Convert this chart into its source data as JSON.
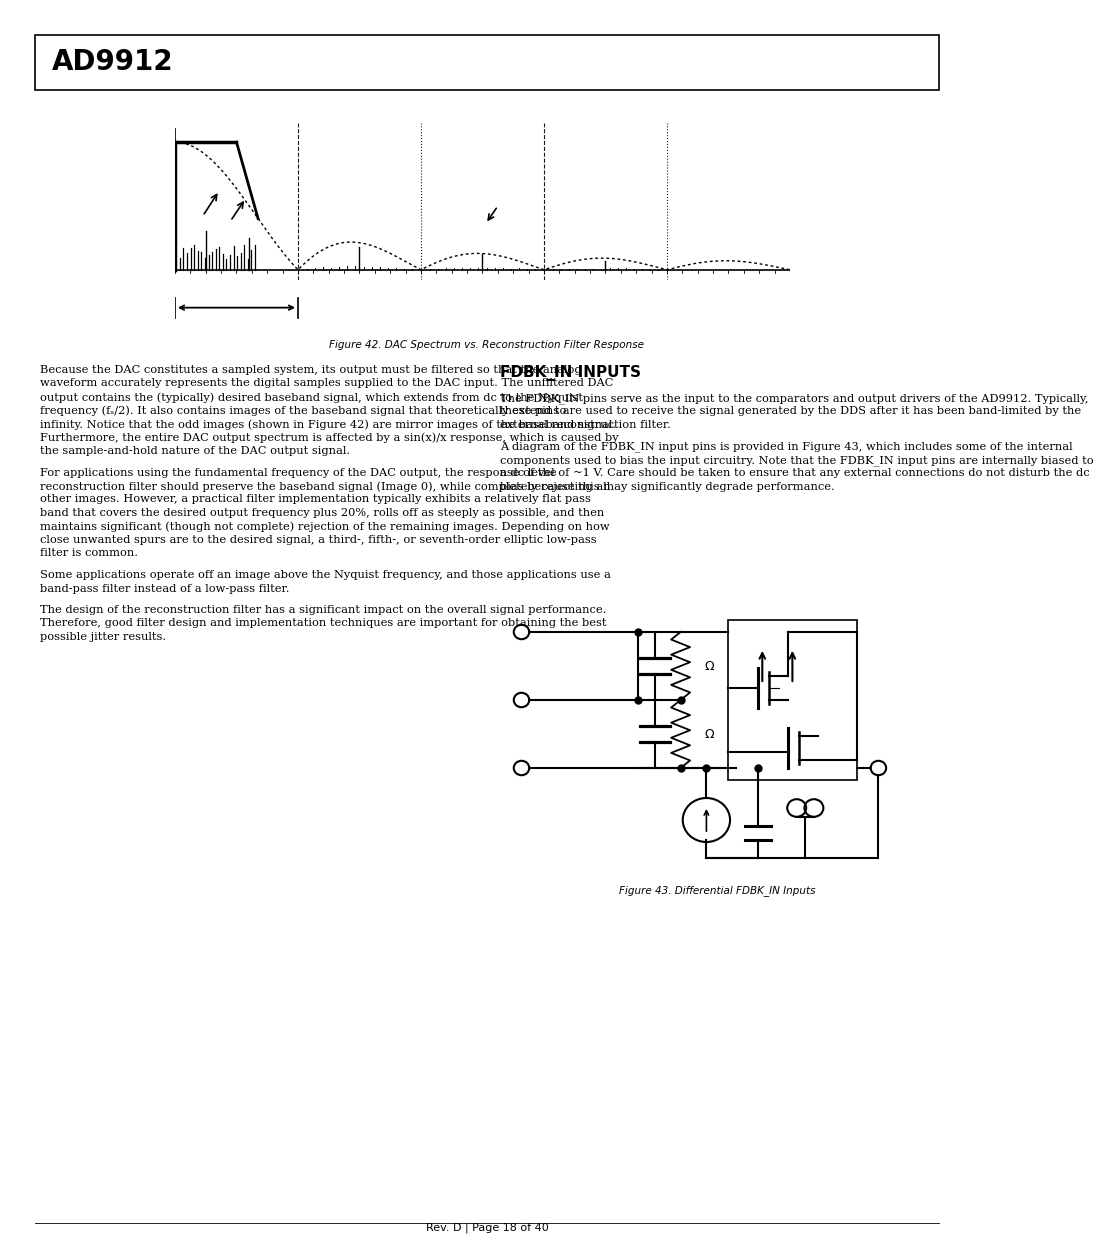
{
  "page_title": "AD9912",
  "figure42_caption": "Figure 42. DAC Spectrum vs. Reconstruction Filter Response",
  "figure43_caption": "Figure 43. Differential FDBK_IN Inputs",
  "section_title": "FDBK_IN INPUTS",
  "left_col_paragraphs": [
    "Because the DAC constitutes a sampled system, its output must be filtered so that the analog waveform accurately represents the digital samples supplied to the DAC input. The unfiltered DAC output contains the (typically) desired baseband signal, which extends from dc to the Nyquist frequency (fₛ/2). It also contains images of the baseband signal that theoretically extend to infinity. Notice that the odd images (shown in Figure 42) are mirror images of the baseband signal. Furthermore, the entire DAC output spectrum is affected by a sin(x)/x response, which is caused by the sample-and-hold nature of the DAC output signal.",
    "For applications using the fundamental frequency of the DAC output, the response of the reconstruction filter should preserve the baseband signal (Image 0), while completely rejecting all other images. However, a practical filter implementation typically exhibits a relatively flat pass band that covers the desired output frequency plus 20%, rolls off as steeply as possible, and then maintains significant (though not complete) rejection of the remaining images. Depending on how close unwanted spurs are to the desired signal, a third-, fifth-, or seventh-order elliptic low-pass filter is common.",
    "Some applications operate off an image above the Nyquist frequency, and those applications use a band-pass filter instead of a low-pass filter.",
    "The design of the reconstruction filter has a significant impact on the overall signal performance. Therefore, good filter design and implementation techniques are important for obtaining the best possible jitter results."
  ],
  "right_col_paragraphs": [
    "The FDBK_IN pins serve as the input to the comparators and output drivers of the AD9912. Typically, these pins are used to receive the signal generated by the DDS after it has been band-limited by the external reconstruction filter.",
    "A diagram of the FDBK_IN input pins is provided in Figure 43, which includes some of the internal components used to bias the input circuitry. Note that the FDBK_IN input pins are internally biased to a dc level of ~1 V. Care should be taken to ensure that any external connections do not disturb the dc bias because this may significantly degrade performance."
  ],
  "footer_text": "Rev. D | Page 18 of 40",
  "bg_color": "#ffffff",
  "text_color": "#000000"
}
